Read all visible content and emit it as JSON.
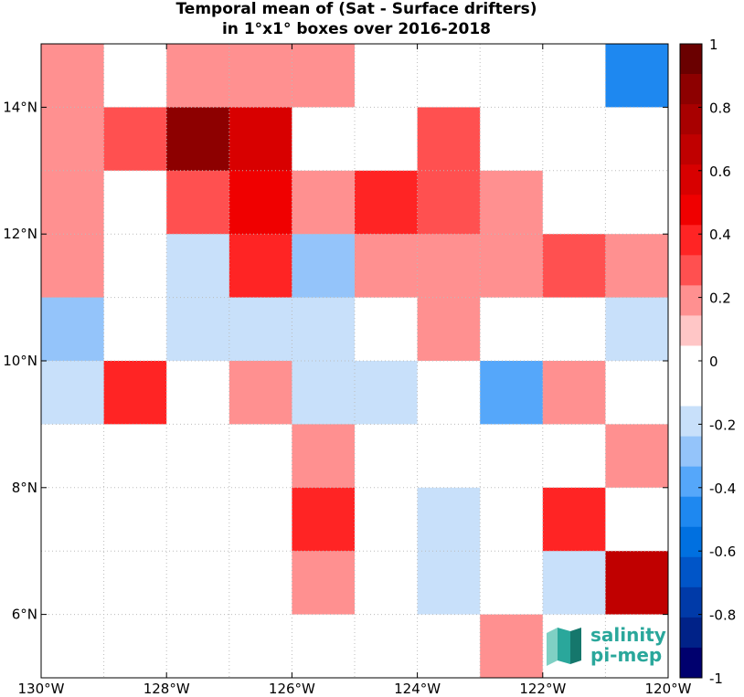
{
  "chart_data": {
    "type": "heatmap",
    "title": "Temporal mean of (Sat - Surface drifters)",
    "subtitle": "in 1°x1° boxes over 2016-2018",
    "xlim": [
      -130,
      -120
    ],
    "ylim": [
      5,
      15
    ],
    "x_ticks": [
      {
        "value": -130,
        "label": "130°W"
      },
      {
        "value": -128,
        "label": "128°W"
      },
      {
        "value": -126,
        "label": "126°W"
      },
      {
        "value": -124,
        "label": "124°W"
      },
      {
        "value": -122,
        "label": "122°W"
      },
      {
        "value": -120,
        "label": "120°W"
      }
    ],
    "y_ticks": [
      {
        "value": 6,
        "label": "6°N"
      },
      {
        "value": 8,
        "label": "8°N"
      },
      {
        "value": 10,
        "label": "10°N"
      },
      {
        "value": 12,
        "label": "12°N"
      },
      {
        "value": 14,
        "label": "14°N"
      }
    ],
    "grid": true,
    "cell_size_deg": 1,
    "rows": [
      {
        "lat": 14.5,
        "values": [
          0.15,
          0.0,
          0.15,
          0.15,
          0.15,
          0.0,
          0.0,
          0.0,
          0.0,
          -0.45
        ]
      },
      {
        "lat": 13.5,
        "values": [
          0.15,
          0.25,
          0.85,
          0.55,
          0.0,
          0.0,
          0.25,
          0.0,
          0.0,
          0.0
        ]
      },
      {
        "lat": 12.5,
        "values": [
          0.15,
          0.0,
          0.25,
          0.45,
          0.15,
          0.35,
          0.25,
          0.15,
          0.0,
          0.0
        ]
      },
      {
        "lat": 11.5,
        "values": [
          0.15,
          0.0,
          -0.15,
          0.35,
          -0.25,
          0.15,
          0.15,
          0.15,
          0.25,
          0.15
        ]
      },
      {
        "lat": 10.5,
        "values": [
          -0.25,
          0.0,
          -0.15,
          -0.15,
          -0.15,
          0.0,
          0.15,
          0.0,
          0.0,
          -0.15
        ]
      },
      {
        "lat": 9.5,
        "values": [
          -0.15,
          0.35,
          0.0,
          0.15,
          -0.15,
          -0.15,
          0.0,
          -0.35,
          0.15,
          0.0
        ]
      },
      {
        "lat": 8.5,
        "values": [
          0.0,
          0.0,
          0.0,
          0.0,
          0.15,
          0.0,
          0.0,
          0.0,
          0.0,
          0.15
        ]
      },
      {
        "lat": 7.5,
        "values": [
          0.0,
          0.0,
          0.0,
          0.0,
          0.35,
          0.0,
          -0.15,
          0.0,
          0.35,
          0.0
        ]
      },
      {
        "lat": 6.5,
        "values": [
          0.0,
          0.0,
          0.0,
          0.0,
          0.15,
          0.0,
          -0.15,
          0.0,
          -0.15,
          0.65
        ]
      },
      {
        "lat": 5.5,
        "values": [
          0.0,
          0.0,
          0.0,
          0.0,
          0.0,
          0.0,
          0.0,
          0.15,
          0.0,
          0.0
        ]
      }
    ],
    "colorbar": {
      "range": [
        -1,
        1
      ],
      "step": 0.1,
      "tick_values": [
        1,
        0.8,
        0.6,
        0.4,
        0.2,
        0,
        -0.2,
        -0.4,
        -0.6,
        -0.8,
        -1
      ],
      "tick_labels": [
        "1",
        "0.8",
        "0.6",
        "0.4",
        "0.2",
        "0",
        "-0.2",
        "-0.4",
        "-0.6",
        "-0.8",
        "-1"
      ],
      "colors_top_to_bottom": [
        "#6a0000",
        "#8d0000",
        "#a80000",
        "#c00000",
        "#d80000",
        "#f00000",
        "#ff2424",
        "#ff5050",
        "#ff9090",
        "#ffc6c6",
        "#ffffff",
        "#ffffff",
        "#c8e0fa",
        "#94c4fa",
        "#55a7fa",
        "#1e88f0",
        "#0070e0",
        "#0055c8",
        "#003aa8",
        "#002288",
        "#00006e"
      ]
    }
  },
  "logo": {
    "line1": "salinity",
    "line2": "pi-mep",
    "text_color": "#2aa79b",
    "mark_colors": [
      "#2aa79b",
      "#7fd0c4",
      "#15776c"
    ]
  }
}
